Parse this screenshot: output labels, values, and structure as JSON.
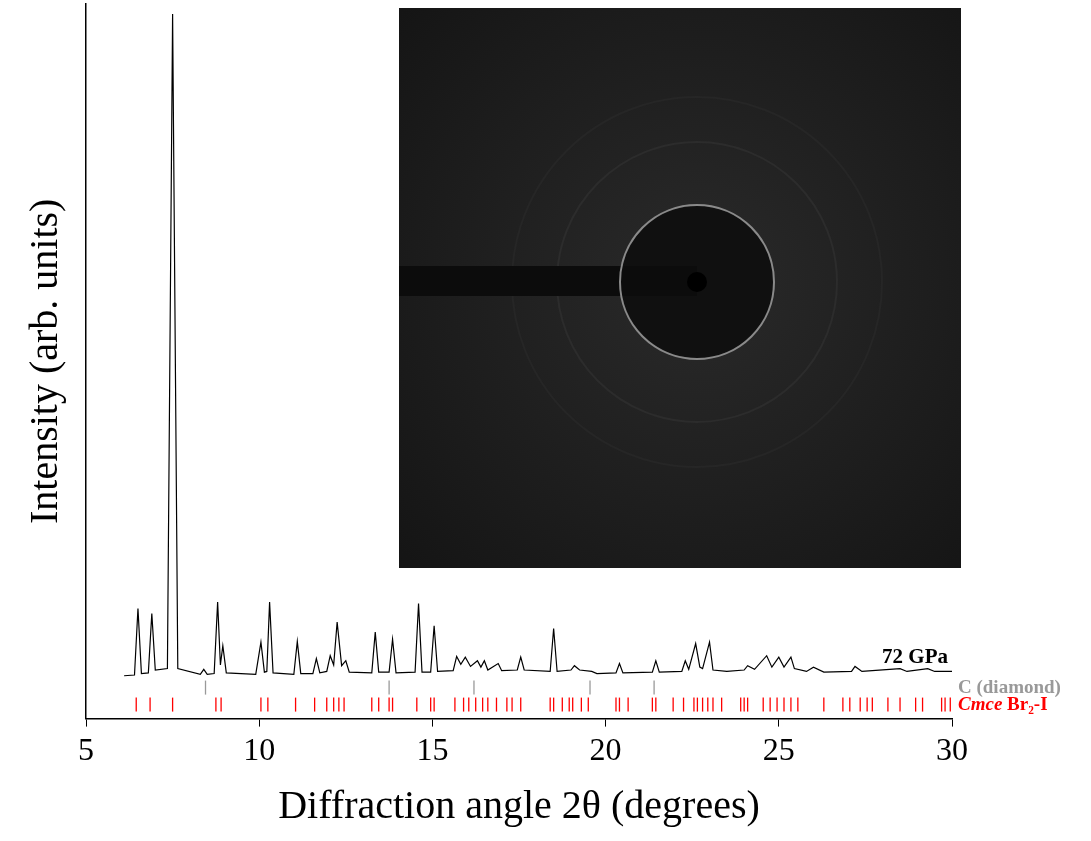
{
  "chart_data": {
    "type": "line",
    "x_label": "Diffraction angle 2θ (degrees)",
    "y_label": "Intensity (arb. units)",
    "xlim": [
      5,
      30
    ],
    "xticks": [
      5,
      10,
      15,
      20,
      25,
      30
    ],
    "ylim": [
      0,
      100
    ],
    "tick_labels": "x",
    "grid": false,
    "series": [
      {
        "name": "72 GPa",
        "color": "#000000",
        "line_style": "solid",
        "x": [
          6.1,
          6.4,
          6.5,
          6.6,
          6.8,
          6.9,
          7.0,
          7.35,
          7.5,
          7.65,
          8.3,
          8.4,
          8.5,
          8.7,
          8.8,
          8.88,
          8.95,
          9.05,
          9.9,
          10.05,
          10.15,
          10.22,
          10.3,
          10.4,
          11.0,
          11.1,
          11.2,
          11.55,
          11.65,
          11.75,
          11.95,
          12.05,
          12.15,
          12.25,
          12.38,
          12.5,
          12.6,
          13.25,
          13.35,
          13.45,
          13.75,
          13.85,
          13.95,
          14.5,
          14.6,
          14.7,
          14.95,
          15.05,
          15.15,
          15.6,
          15.7,
          15.82,
          15.95,
          16.1,
          16.3,
          16.4,
          16.5,
          16.6,
          16.9,
          17.0,
          17.45,
          17.55,
          17.65,
          18.4,
          18.5,
          18.6,
          19.0,
          19.1,
          19.25,
          19.6,
          19.75,
          20.3,
          20.4,
          20.5,
          21.35,
          21.45,
          21.55,
          22.2,
          22.3,
          22.4,
          22.6,
          22.72,
          22.8,
          23.0,
          23.1,
          23.5,
          24.0,
          24.1,
          24.3,
          24.65,
          24.8,
          25.0,
          25.15,
          25.35,
          25.45,
          25.8,
          26.0,
          26.3,
          27.1,
          27.2,
          27.4,
          28.5,
          28.7,
          29.3,
          29.5,
          30
        ],
        "values": [
          6.0,
          6.1,
          15.4,
          6.3,
          6.4,
          14.7,
          6.8,
          7.0,
          98.6,
          7.0,
          6.2,
          6.9,
          6.2,
          6.3,
          16.3,
          7.5,
          10.2,
          6.4,
          6.2,
          10.7,
          6.5,
          6.6,
          16.3,
          6.4,
          6.2,
          10.8,
          6.3,
          6.3,
          8.4,
          6.4,
          6.6,
          8.8,
          7.5,
          13.5,
          7.4,
          8.1,
          6.5,
          6.4,
          12.1,
          6.5,
          6.5,
          11.1,
          6.4,
          6.5,
          16.1,
          6.5,
          6.5,
          13.0,
          6.6,
          6.7,
          8.7,
          7.6,
          8.6,
          7.3,
          8.1,
          7.2,
          8.1,
          6.8,
          7.7,
          6.7,
          6.8,
          8.6,
          6.8,
          6.6,
          12.6,
          6.6,
          6.8,
          7.4,
          6.8,
          6.6,
          6.3,
          6.4,
          7.7,
          6.4,
          6.5,
          8.1,
          6.5,
          6.6,
          8.1,
          6.9,
          10.5,
          7.2,
          7.0,
          10.7,
          6.8,
          6.6,
          6.8,
          7.4,
          6.9,
          8.8,
          7.2,
          8.6,
          7.2,
          8.6,
          7.0,
          6.6,
          7.2,
          6.5,
          6.6,
          7.3,
          6.6,
          7.0,
          6.6,
          7.0,
          6.6,
          6.6
        ]
      }
    ],
    "reflections": [
      {
        "name": "C (diamond)",
        "color": "#999999",
        "marker": "line",
        "positions": [
          8.45,
          13.75,
          16.2,
          19.55,
          21.4
        ]
      },
      {
        "name": "Cmce Br₂-I",
        "color": "#ff0000",
        "marker": "line",
        "positions": [
          6.45,
          6.85,
          7.5,
          8.75,
          8.9,
          10.05,
          10.25,
          11.05,
          11.6,
          11.95,
          12.15,
          12.3,
          12.45,
          13.25,
          13.45,
          13.75,
          13.85,
          14.55,
          14.95,
          15.05,
          15.65,
          15.9,
          16.05,
          16.25,
          16.45,
          16.6,
          16.85,
          17.15,
          17.3,
          17.55,
          18.4,
          18.5,
          18.75,
          18.95,
          19.05,
          19.3,
          19.5,
          20.3,
          20.4,
          20.65,
          21.35,
          21.45,
          21.95,
          22.25,
          22.55,
          22.65,
          22.8,
          22.95,
          23.1,
          23.35,
          23.9,
          24.0,
          24.1,
          24.55,
          24.75,
          24.95,
          25.15,
          25.35,
          25.55,
          26.3,
          26.85,
          27.05,
          27.35,
          27.55,
          27.7,
          28.15,
          28.5,
          28.95,
          29.15,
          29.7,
          29.8,
          29.95
        ]
      }
    ]
  }
}
